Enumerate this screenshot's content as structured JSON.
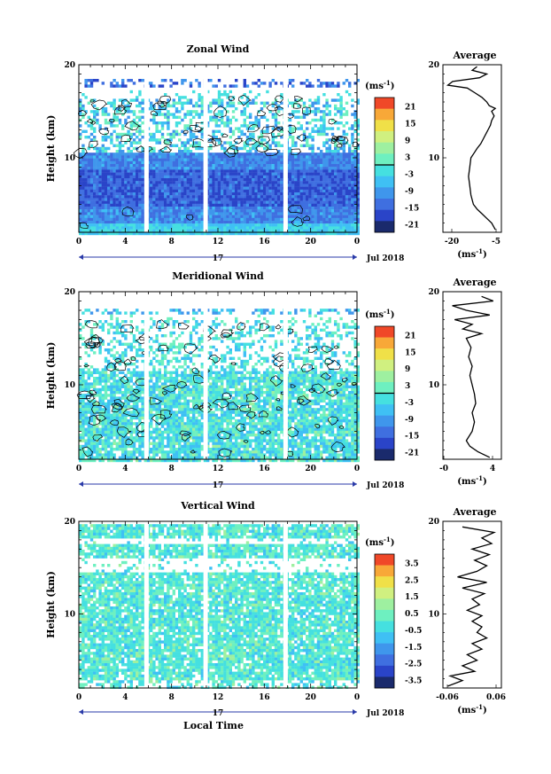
{
  "chart_data": [
    {
      "type": "heatmap",
      "id": "zonal",
      "title": "Zonal Wind",
      "xlabel": "",
      "ylabel": "Height (km)",
      "xlim": [
        0,
        24
      ],
      "ylim": [
        2,
        20
      ],
      "x_ticks": [
        "0",
        "4",
        "8",
        "12",
        "16",
        "20",
        "0"
      ],
      "y_ticks": [
        "20",
        "10"
      ],
      "date_label": "17",
      "month_label": "Jul 2018",
      "gaps_hours": [
        5.8,
        10.9,
        17.8
      ],
      "colorbar": {
        "unit": "(ms",
        "unit_exp": "-1",
        "unit_close": ")",
        "ticks": [
          "21",
          "15",
          "9",
          "3",
          "-3",
          "-9",
          "-15",
          "-21"
        ],
        "zero_marker": true
      },
      "average": {
        "title": "Average",
        "unit": "(ms",
        "unit_exp": "-1",
        "unit_close": ")",
        "x_ticks": [
          "-20",
          "-5"
        ],
        "y_ticks": [
          "20",
          "10"
        ],
        "xlim": [
          -24,
          0
        ],
        "profile": [
          {
            "h": 2.3,
            "v": -2.5
          },
          {
            "h": 3,
            "v": -4
          },
          {
            "h": 3.5,
            "v": -6
          },
          {
            "h": 4,
            "v": -8
          },
          {
            "h": 4.5,
            "v": -10
          },
          {
            "h": 5,
            "v": -11.5
          },
          {
            "h": 6,
            "v": -12.5
          },
          {
            "h": 7,
            "v": -13
          },
          {
            "h": 8,
            "v": -13.5
          },
          {
            "h": 9,
            "v": -13
          },
          {
            "h": 10,
            "v": -12.5
          },
          {
            "h": 10.6,
            "v": -11
          },
          {
            "h": 11,
            "v": -10
          },
          {
            "h": 11.5,
            "v": -8.5
          },
          {
            "h": 12,
            "v": -7.5
          },
          {
            "h": 12.5,
            "v": -6.5
          },
          {
            "h": 13,
            "v": -5.5
          },
          {
            "h": 13.5,
            "v": -4.5
          },
          {
            "h": 14,
            "v": -4
          },
          {
            "h": 14.5,
            "v": -3
          },
          {
            "h": 15,
            "v": -4
          },
          {
            "h": 15.3,
            "v": -2.5
          },
          {
            "h": 15.6,
            "v": -5
          },
          {
            "h": 16,
            "v": -6
          },
          {
            "h": 16.5,
            "v": -8
          },
          {
            "h": 17,
            "v": -11
          },
          {
            "h": 17.5,
            "v": -14
          },
          {
            "h": 17.8,
            "v": -22
          },
          {
            "h": 18.2,
            "v": -20
          },
          {
            "h": 18.6,
            "v": -9
          },
          {
            "h": 19,
            "v": -6
          },
          {
            "h": 19.4,
            "v": -12
          },
          {
            "h": 19.8,
            "v": -10
          }
        ]
      }
    },
    {
      "type": "heatmap",
      "id": "meridional",
      "title": "Meridional Wind",
      "xlabel": "",
      "ylabel": "Height (km)",
      "xlim": [
        0,
        24
      ],
      "ylim": [
        2,
        20
      ],
      "x_ticks": [
        "0",
        "4",
        "8",
        "12",
        "16",
        "20",
        "0"
      ],
      "y_ticks": [
        "20",
        "10"
      ],
      "date_label": "17",
      "month_label": "Jul 2018",
      "gaps_hours": [
        5.8,
        10.9,
        17.8
      ],
      "colorbar": {
        "unit": "(ms",
        "unit_exp": "-1",
        "unit_close": ")",
        "ticks": [
          "21",
          "15",
          "9",
          "3",
          "-3",
          "-9",
          "-15",
          "-21"
        ],
        "zero_marker": true
      },
      "average": {
        "title": "Average",
        "unit": "(ms",
        "unit_exp": "-1",
        "unit_close": ")",
        "x_ticks": [
          "-0",
          "4"
        ],
        "y_ticks": [
          "20",
          "10"
        ],
        "xlim": [
          -0.5,
          4.5
        ],
        "profile": [
          {
            "h": 2.2,
            "v": 3.5
          },
          {
            "h": 2.8,
            "v": 2.5
          },
          {
            "h": 3.4,
            "v": 1.8
          },
          {
            "h": 4,
            "v": 1.5
          },
          {
            "h": 5,
            "v": 2
          },
          {
            "h": 6,
            "v": 2.2
          },
          {
            "h": 7,
            "v": 2
          },
          {
            "h": 8,
            "v": 2.3
          },
          {
            "h": 9,
            "v": 2.2
          },
          {
            "h": 10,
            "v": 2
          },
          {
            "h": 11,
            "v": 1.8
          },
          {
            "h": 12,
            "v": 2
          },
          {
            "h": 13,
            "v": 1.7
          },
          {
            "h": 14,
            "v": 1.9
          },
          {
            "h": 15,
            "v": 1.5
          },
          {
            "h": 15.5,
            "v": 2.8
          },
          {
            "h": 16,
            "v": 1.2
          },
          {
            "h": 16.5,
            "v": 2
          },
          {
            "h": 17,
            "v": 0.5
          },
          {
            "h": 17.5,
            "v": 3.5
          },
          {
            "h": 18,
            "v": 1.5
          },
          {
            "h": 18.5,
            "v": 0.3
          },
          {
            "h": 19,
            "v": 3.8
          },
          {
            "h": 19.5,
            "v": 2.8
          }
        ]
      }
    },
    {
      "type": "heatmap",
      "id": "vertical",
      "title": "Vertical Wind",
      "xlabel": "Local Time",
      "ylabel": "Height (km)",
      "xlim": [
        0,
        24
      ],
      "ylim": [
        2,
        20
      ],
      "x_ticks": [
        "0",
        "4",
        "8",
        "12",
        "16",
        "20",
        "0"
      ],
      "y_ticks": [
        "20",
        "10"
      ],
      "date_label": "17",
      "month_label": "Jul 2018",
      "gaps_hours": [
        5.8,
        10.9,
        17.8
      ],
      "colorbar": {
        "unit": "(ms",
        "unit_exp": "-1",
        "unit_close": ")",
        "ticks": [
          "3.5",
          "2.5",
          "1.5",
          "0.5",
          "-0.5",
          "-1.5",
          "-2.5",
          "-3.5"
        ],
        "zero_marker": false
      },
      "average": {
        "title": "Average",
        "unit": "(ms",
        "unit_exp": "-1",
        "unit_close": ")",
        "x_ticks": [
          "-0.06",
          "0.06"
        ],
        "y_ticks": [
          "20",
          "10"
        ],
        "xlim": [
          -0.06,
          0.06
        ],
        "profile": [
          {
            "h": 2.2,
            "v": -0.05
          },
          {
            "h": 2.8,
            "v": -0.02
          },
          {
            "h": 3.3,
            "v": -0.045
          },
          {
            "h": 3.8,
            "v": 0.005
          },
          {
            "h": 4.4,
            "v": -0.02
          },
          {
            "h": 5,
            "v": 0.01
          },
          {
            "h": 5.6,
            "v": -0.01
          },
          {
            "h": 6.2,
            "v": 0.02
          },
          {
            "h": 6.8,
            "v": 0.0
          },
          {
            "h": 7.4,
            "v": 0.03
          },
          {
            "h": 8,
            "v": 0.01
          },
          {
            "h": 8.6,
            "v": 0.02
          },
          {
            "h": 9.2,
            "v": 0.0
          },
          {
            "h": 9.8,
            "v": 0.02
          },
          {
            "h": 10.4,
            "v": -0.01
          },
          {
            "h": 11,
            "v": 0.015
          },
          {
            "h": 11.6,
            "v": 0.0
          },
          {
            "h": 12.2,
            "v": 0.025
          },
          {
            "h": 12.8,
            "v": -0.02
          },
          {
            "h": 13.4,
            "v": 0.03
          },
          {
            "h": 14,
            "v": -0.03
          },
          {
            "h": 14.6,
            "v": 0.01
          },
          {
            "h": 15.2,
            "v": 0.03
          },
          {
            "h": 15.8,
            "v": 0.005
          },
          {
            "h": 16.4,
            "v": 0.035
          },
          {
            "h": 17,
            "v": 0.0
          },
          {
            "h": 17.6,
            "v": 0.04
          },
          {
            "h": 18.2,
            "v": 0.02
          },
          {
            "h": 18.8,
            "v": 0.045
          },
          {
            "h": 19.4,
            "v": -0.02
          }
        ]
      }
    }
  ]
}
